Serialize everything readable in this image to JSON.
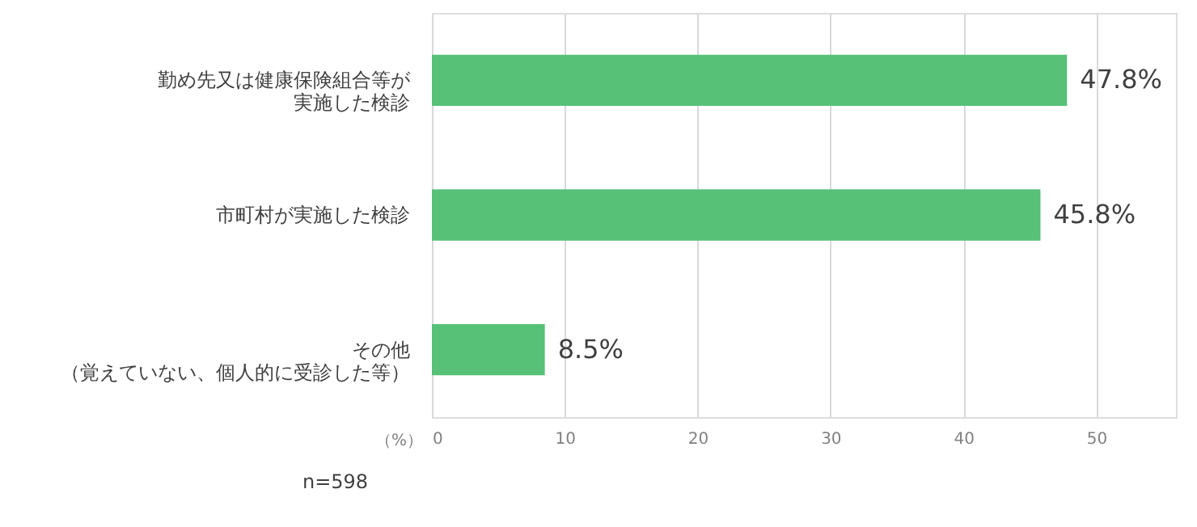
{
  "chart_data": {
    "type": "bar",
    "orientation": "horizontal",
    "categories": [
      "勤め先又は健康保険組合等が実施した検診",
      "市町村が実施した検診",
      "その他（覚えていない、個人的に受診した等）"
    ],
    "values": [
      47.8,
      45.8,
      8.5
    ],
    "value_labels": [
      "47.8%",
      "45.8%",
      "8.5%"
    ],
    "color": "#56c177",
    "xlabel": "（%）",
    "xlim": [
      0,
      56
    ],
    "xticks": [
      0,
      10,
      20,
      30,
      40,
      50
    ],
    "grid": "x",
    "annotations": [
      "n=598"
    ]
  }
}
